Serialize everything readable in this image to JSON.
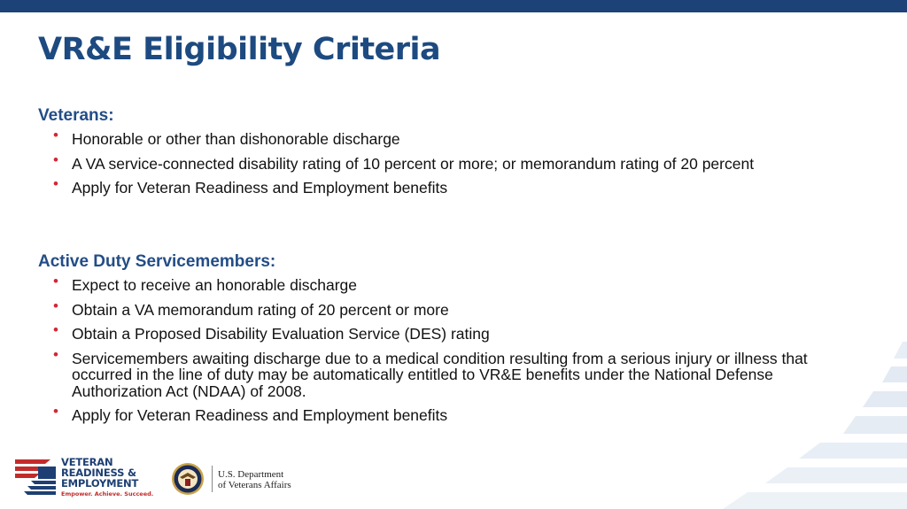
{
  "slide": {
    "title": "VR&E Eligibility Criteria"
  },
  "colors": {
    "top_bar": "#1d4277",
    "title": "#1d4a80",
    "heading": "#234d86",
    "bullet": "#d32636",
    "stripes": "#e3eaf3"
  },
  "veterans": {
    "heading": "Veterans:",
    "items": [
      "Honorable or other than dishonorable discharge",
      "A VA service-connected disability rating of 10 percent or more; or memorandum rating of 20 percent",
      "Apply for Veteran Readiness and Employment benefits"
    ]
  },
  "active_duty": {
    "heading": "Active Duty Servicemembers:",
    "items": [
      "Expect to receive an honorable discharge",
      "Obtain a VA memorandum rating of 20 percent or more",
      "Obtain a Proposed Disability Evaluation Service (DES) rating",
      "Servicemembers awaiting discharge due to a medical condition resulting from a serious injury or illness that occurred in the line of duty may be automatically entitled to VR&E benefits under the National Defense Authorization Act (NDAA) of 2008.",
      "Apply for Veteran Readiness and Employment benefits"
    ]
  },
  "footer": {
    "vre_logo": {
      "line1": "VETERAN",
      "line2": "READINESS &",
      "line3": "EMPLOYMENT",
      "tagline": "Empower. Achieve. Succeed."
    },
    "va_logo": {
      "line1": "U.S. Department",
      "line2": "of Veterans Affairs"
    }
  },
  "icons": {
    "bullet": "bullet-dot-icon",
    "seal": "va-seal-icon",
    "flag": "vre-flag-icon"
  }
}
